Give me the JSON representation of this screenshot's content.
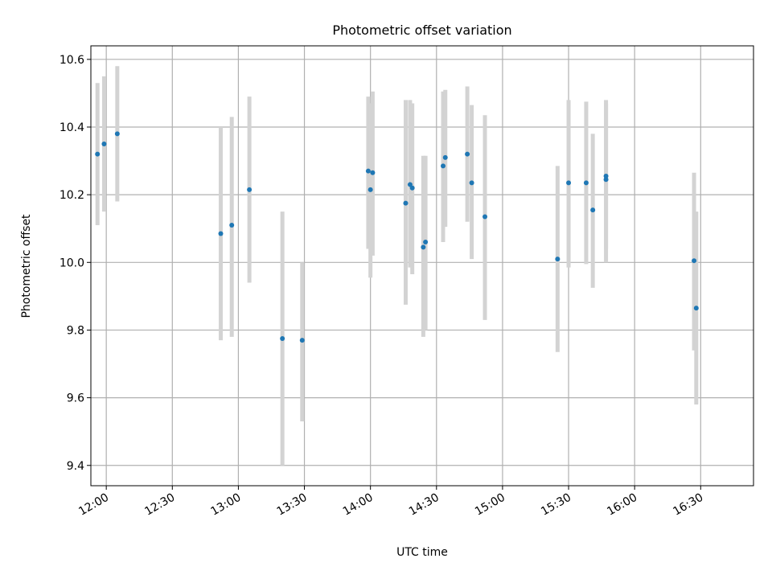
{
  "chart_data": {
    "type": "scatter",
    "title": "Photometric offset variation",
    "xlabel": "UTC time",
    "ylabel": "Photometric offset",
    "x_tick_labels": [
      "12:00",
      "12:30",
      "13:00",
      "13:30",
      "14:00",
      "14:30",
      "15:00",
      "15:30",
      "16:00",
      "16:30"
    ],
    "y_ticks": [
      9.4,
      9.6,
      9.8,
      10.0,
      10.2,
      10.4,
      10.6
    ],
    "y_tick_labels": [
      "9.4",
      "9.6",
      "9.8",
      "10.0",
      "10.2",
      "10.4",
      "10.6"
    ],
    "xlim": [
      "11:53",
      "16:54"
    ],
    "ylim": [
      9.34,
      10.64
    ],
    "grid": true,
    "colors": {
      "point": "#1f77b4",
      "errorbar": "#d3d3d3",
      "grid": "#b0b0b0"
    },
    "series": [
      {
        "points": [
          {
            "x": "11:56",
            "y": 10.32,
            "lo": 10.11,
            "hi": 10.53
          },
          {
            "x": "11:59",
            "y": 10.35,
            "lo": 10.15,
            "hi": 10.55
          },
          {
            "x": "12:05",
            "y": 10.38,
            "lo": 10.18,
            "hi": 10.58
          },
          {
            "x": "12:52",
            "y": 10.085,
            "lo": 9.77,
            "hi": 10.4
          },
          {
            "x": "12:57",
            "y": 10.11,
            "lo": 9.78,
            "hi": 10.43
          },
          {
            "x": "13:05",
            "y": 10.215,
            "lo": 9.94,
            "hi": 10.49
          },
          {
            "x": "13:20",
            "y": 9.775,
            "lo": 9.4,
            "hi": 10.15
          },
          {
            "x": "13:29",
            "y": 9.77,
            "lo": 9.53,
            "hi": 10.0
          },
          {
            "x": "13:59",
            "y": 10.27,
            "lo": 10.04,
            "hi": 10.49
          },
          {
            "x": "14:00",
            "y": 10.215,
            "lo": 9.955,
            "hi": 10.47
          },
          {
            "x": "14:01",
            "y": 10.265,
            "lo": 10.02,
            "hi": 10.505
          },
          {
            "x": "14:16",
            "y": 10.175,
            "lo": 9.875,
            "hi": 10.48
          },
          {
            "x": "14:18",
            "y": 10.23,
            "lo": 9.985,
            "hi": 10.48
          },
          {
            "x": "14:19",
            "y": 10.22,
            "lo": 9.965,
            "hi": 10.47
          },
          {
            "x": "14:24",
            "y": 10.045,
            "lo": 9.78,
            "hi": 10.315
          },
          {
            "x": "14:25",
            "y": 10.06,
            "lo": 9.8,
            "hi": 10.315
          },
          {
            "x": "14:33",
            "y": 10.285,
            "lo": 10.06,
            "hi": 10.505
          },
          {
            "x": "14:34",
            "y": 10.31,
            "lo": 10.105,
            "hi": 10.51
          },
          {
            "x": "14:44",
            "y": 10.32,
            "lo": 10.12,
            "hi": 10.52
          },
          {
            "x": "14:46",
            "y": 10.235,
            "lo": 10.01,
            "hi": 10.465
          },
          {
            "x": "14:52",
            "y": 10.135,
            "lo": 9.83,
            "hi": 10.435
          },
          {
            "x": "15:25",
            "y": 10.01,
            "lo": 9.735,
            "hi": 10.285
          },
          {
            "x": "15:30",
            "y": 10.235,
            "lo": 9.985,
            "hi": 10.48
          },
          {
            "x": "15:38",
            "y": 10.235,
            "lo": 9.995,
            "hi": 10.475
          },
          {
            "x": "15:41",
            "y": 10.155,
            "lo": 9.925,
            "hi": 10.38
          },
          {
            "x": "15:47",
            "y": 10.245,
            "lo": 10.0,
            "hi": 10.48
          },
          {
            "x": "15:47",
            "y": 10.255,
            "lo": 10.04,
            "hi": 10.47
          },
          {
            "x": "16:27",
            "y": 10.005,
            "lo": 9.74,
            "hi": 10.265
          },
          {
            "x": "16:28",
            "y": 9.865,
            "lo": 9.58,
            "hi": 10.15
          }
        ]
      }
    ]
  }
}
